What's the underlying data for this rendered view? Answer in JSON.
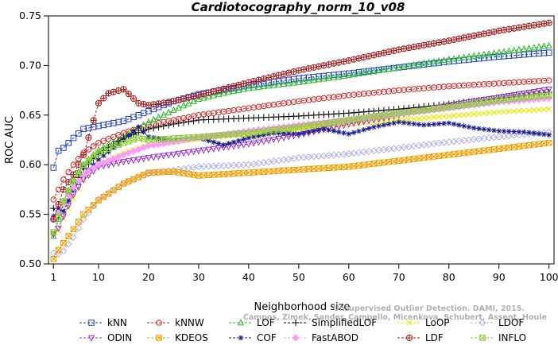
{
  "chart_data": {
    "type": "line",
    "title": "Cardiotocography_norm_10_v08",
    "xlabel": "Neighborhood size",
    "ylabel": "ROC AUC",
    "xlim": [
      0,
      101
    ],
    "ylim": [
      0.5,
      0.75
    ],
    "x_ticks": [
      1,
      10,
      20,
      30,
      40,
      50,
      60,
      70,
      80,
      90,
      100
    ],
    "y_ticks": [
      "0.50",
      "0.55",
      "0.60",
      "0.65",
      "0.70",
      "0.75"
    ],
    "grid": false,
    "legend_position": "bottom",
    "credit": "Campos, Zimek, Sander, Campello, Micenkova, Schubert, Assent, Houle",
    "credit_line1": "Unsupervised Outlier Detection. DAMI, 2015.",
    "series": [
      {
        "name": "kNN",
        "color": "#1f3fcf",
        "marker": "square",
        "points": [
          [
            1,
            0.597
          ],
          [
            2,
            0.614
          ],
          [
            3,
            0.617
          ],
          [
            5,
            0.627
          ],
          [
            7,
            0.636
          ],
          [
            10,
            0.639
          ],
          [
            15,
            0.644
          ],
          [
            20,
            0.654
          ],
          [
            25,
            0.664
          ],
          [
            30,
            0.671
          ],
          [
            40,
            0.68
          ],
          [
            50,
            0.687
          ],
          [
            60,
            0.692
          ],
          [
            70,
            0.698
          ],
          [
            80,
            0.704
          ],
          [
            90,
            0.709
          ],
          [
            100,
            0.713
          ]
        ]
      },
      {
        "name": "kNNW",
        "color": "#d62020",
        "marker": "circle",
        "points": [
          [
            1,
            0.565
          ],
          [
            2,
            0.575
          ],
          [
            3,
            0.585
          ],
          [
            5,
            0.6
          ],
          [
            7,
            0.612
          ],
          [
            10,
            0.622
          ],
          [
            15,
            0.632
          ],
          [
            20,
            0.64
          ],
          [
            30,
            0.65
          ],
          [
            40,
            0.657
          ],
          [
            50,
            0.664
          ],
          [
            60,
            0.67
          ],
          [
            70,
            0.675
          ],
          [
            80,
            0.679
          ],
          [
            90,
            0.682
          ],
          [
            100,
            0.685
          ]
        ]
      },
      {
        "name": "LOF",
        "color": "#2db82d",
        "marker": "triangle",
        "points": [
          [
            1,
            0.528
          ],
          [
            2,
            0.545
          ],
          [
            3,
            0.563
          ],
          [
            5,
            0.585
          ],
          [
            7,
            0.6
          ],
          [
            10,
            0.615
          ],
          [
            15,
            0.628
          ],
          [
            20,
            0.643
          ],
          [
            25,
            0.655
          ],
          [
            30,
            0.666
          ],
          [
            35,
            0.672
          ],
          [
            40,
            0.677
          ],
          [
            50,
            0.683
          ],
          [
            60,
            0.69
          ],
          [
            70,
            0.698
          ],
          [
            80,
            0.706
          ],
          [
            90,
            0.713
          ],
          [
            100,
            0.72
          ]
        ]
      },
      {
        "name": "SimplifiedLOF",
        "color": "#000000",
        "marker": "plus",
        "points": [
          [
            1,
            0.556
          ],
          [
            2,
            0.549
          ],
          [
            3,
            0.56
          ],
          [
            5,
            0.578
          ],
          [
            7,
            0.596
          ],
          [
            10,
            0.611
          ],
          [
            15,
            0.627
          ],
          [
            20,
            0.636
          ],
          [
            25,
            0.641
          ],
          [
            30,
            0.645
          ],
          [
            40,
            0.647
          ],
          [
            50,
            0.649
          ],
          [
            60,
            0.652
          ],
          [
            70,
            0.656
          ],
          [
            80,
            0.661
          ],
          [
            90,
            0.667
          ],
          [
            100,
            0.673
          ]
        ]
      },
      {
        "name": "LoOP",
        "color": "#e8e800",
        "marker": "x",
        "points": [
          [
            1,
            0.531
          ],
          [
            2,
            0.534
          ],
          [
            3,
            0.546
          ],
          [
            5,
            0.566
          ],
          [
            7,
            0.585
          ],
          [
            10,
            0.6
          ],
          [
            15,
            0.612
          ],
          [
            20,
            0.62
          ],
          [
            30,
            0.626
          ],
          [
            40,
            0.631
          ],
          [
            50,
            0.636
          ],
          [
            60,
            0.641
          ],
          [
            70,
            0.645
          ],
          [
            80,
            0.649
          ],
          [
            90,
            0.653
          ],
          [
            100,
            0.656
          ]
        ]
      },
      {
        "name": "LDOF",
        "color": "#b0b0e6",
        "marker": "diamond",
        "points": [
          [
            1,
            0.511
          ],
          [
            2,
            0.51
          ],
          [
            3,
            0.513
          ],
          [
            5,
            0.527
          ],
          [
            7,
            0.545
          ],
          [
            10,
            0.565
          ],
          [
            15,
            0.581
          ],
          [
            20,
            0.591
          ],
          [
            30,
            0.598
          ],
          [
            40,
            0.6
          ],
          [
            50,
            0.607
          ],
          [
            60,
            0.611
          ],
          [
            70,
            0.617
          ],
          [
            80,
            0.623
          ],
          [
            90,
            0.628
          ],
          [
            100,
            0.633
          ]
        ]
      },
      {
        "name": "ODIN",
        "color": "#9a32cd",
        "marker": "triangle-down",
        "points": [
          [
            1,
            0.53
          ],
          [
            2,
            0.536
          ],
          [
            3,
            0.548
          ],
          [
            5,
            0.57
          ],
          [
            7,
            0.585
          ],
          [
            10,
            0.598
          ],
          [
            15,
            0.603
          ],
          [
            20,
            0.607
          ],
          [
            30,
            0.614
          ],
          [
            40,
            0.621
          ],
          [
            50,
            0.63
          ],
          [
            60,
            0.641
          ],
          [
            70,
            0.65
          ],
          [
            80,
            0.66
          ],
          [
            90,
            0.668
          ],
          [
            100,
            0.676
          ]
        ]
      },
      {
        "name": "KDEOS",
        "color": "#f0a000",
        "marker": "square-x",
        "points": [
          [
            1,
            0.505
          ],
          [
            2,
            0.514
          ],
          [
            3,
            0.521
          ],
          [
            5,
            0.535
          ],
          [
            7,
            0.55
          ],
          [
            10,
            0.564
          ],
          [
            15,
            0.581
          ],
          [
            20,
            0.592
          ],
          [
            25,
            0.593
          ],
          [
            30,
            0.589
          ],
          [
            40,
            0.592
          ],
          [
            50,
            0.595
          ],
          [
            60,
            0.598
          ],
          [
            70,
            0.604
          ],
          [
            80,
            0.61
          ],
          [
            90,
            0.616
          ],
          [
            100,
            0.622
          ]
        ]
      },
      {
        "name": "COF",
        "color": "#1a1a8c",
        "marker": "asterisk",
        "points": [
          [
            1,
            0.548
          ],
          [
            2,
            0.556
          ],
          [
            3,
            0.553
          ],
          [
            5,
            0.575
          ],
          [
            7,
            0.59
          ],
          [
            10,
            0.605
          ],
          [
            15,
            0.625
          ],
          [
            18,
            0.638
          ],
          [
            20,
            0.628
          ],
          [
            25,
            0.624
          ],
          [
            30,
            0.627
          ],
          [
            35,
            0.62
          ],
          [
            40,
            0.627
          ],
          [
            45,
            0.632
          ],
          [
            50,
            0.631
          ],
          [
            55,
            0.636
          ],
          [
            60,
            0.631
          ],
          [
            65,
            0.638
          ],
          [
            70,
            0.643
          ],
          [
            75,
            0.64
          ],
          [
            80,
            0.642
          ],
          [
            85,
            0.637
          ],
          [
            90,
            0.634
          ],
          [
            95,
            0.633
          ],
          [
            100,
            0.63
          ]
        ]
      },
      {
        "name": "FastABOD",
        "color": "#ff99ff",
        "marker": "diamond-filled",
        "points": [
          [
            1,
            0.545
          ],
          [
            2,
            0.551
          ],
          [
            3,
            0.56
          ],
          [
            5,
            0.577
          ],
          [
            7,
            0.59
          ],
          [
            10,
            0.6
          ],
          [
            15,
            0.61
          ],
          [
            20,
            0.619
          ],
          [
            30,
            0.627
          ],
          [
            40,
            0.634
          ],
          [
            50,
            0.64
          ],
          [
            60,
            0.645
          ],
          [
            70,
            0.651
          ],
          [
            80,
            0.657
          ],
          [
            90,
            0.663
          ],
          [
            100,
            0.667
          ]
        ]
      },
      {
        "name": "LDF",
        "color": "#a01c1c",
        "marker": "circle-plus",
        "points": [
          [
            1,
            0.545
          ],
          [
            2,
            0.56
          ],
          [
            3,
            0.575
          ],
          [
            5,
            0.59
          ],
          [
            7,
            0.61
          ],
          [
            10,
            0.662
          ],
          [
            12,
            0.672
          ],
          [
            15,
            0.676
          ],
          [
            18,
            0.662
          ],
          [
            20,
            0.66
          ],
          [
            25,
            0.664
          ],
          [
            30,
            0.67
          ],
          [
            40,
            0.683
          ],
          [
            50,
            0.695
          ],
          [
            60,
            0.705
          ],
          [
            70,
            0.716
          ],
          [
            80,
            0.725
          ],
          [
            90,
            0.735
          ],
          [
            100,
            0.743
          ]
        ]
      },
      {
        "name": "INFLO",
        "color": "#8acd34",
        "marker": "square-x",
        "points": [
          [
            1,
            0.532
          ],
          [
            2,
            0.548
          ],
          [
            3,
            0.563
          ],
          [
            5,
            0.583
          ],
          [
            7,
            0.6
          ],
          [
            10,
            0.612
          ],
          [
            15,
            0.622
          ],
          [
            18,
            0.627
          ],
          [
            20,
            0.625
          ],
          [
            30,
            0.628
          ],
          [
            40,
            0.632
          ],
          [
            50,
            0.638
          ],
          [
            60,
            0.645
          ],
          [
            70,
            0.652
          ],
          [
            80,
            0.658
          ],
          [
            90,
            0.665
          ],
          [
            100,
            0.67
          ]
        ]
      }
    ]
  }
}
